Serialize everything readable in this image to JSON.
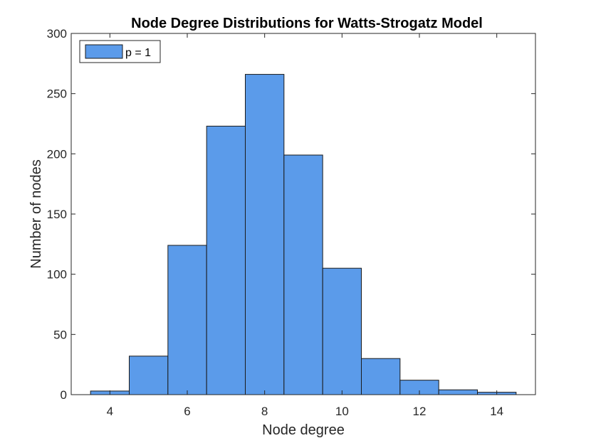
{
  "chart_data": {
    "type": "bar",
    "title": "Node Degree Distributions for Watts-Strogatz Model",
    "xlabel": "Node degree",
    "ylabel": "Number of nodes",
    "xlim": [
      3,
      15
    ],
    "ylim": [
      0,
      300
    ],
    "xticks": [
      4,
      6,
      8,
      10,
      12,
      14
    ],
    "yticks": [
      0,
      50,
      100,
      150,
      200,
      250,
      300
    ],
    "bin_width": 1,
    "series": [
      {
        "name": "p = 1",
        "color": "#5b9bea",
        "edge_color": "#1a1a1a",
        "x": [
          4,
          5,
          6,
          7,
          8,
          9,
          10,
          11,
          12,
          13,
          14
        ],
        "values": [
          3,
          32,
          124,
          223,
          266,
          199,
          105,
          30,
          12,
          4,
          2
        ]
      }
    ],
    "grid": false,
    "legend": {
      "position": "top-left",
      "entries": [
        "p = 1"
      ]
    }
  }
}
